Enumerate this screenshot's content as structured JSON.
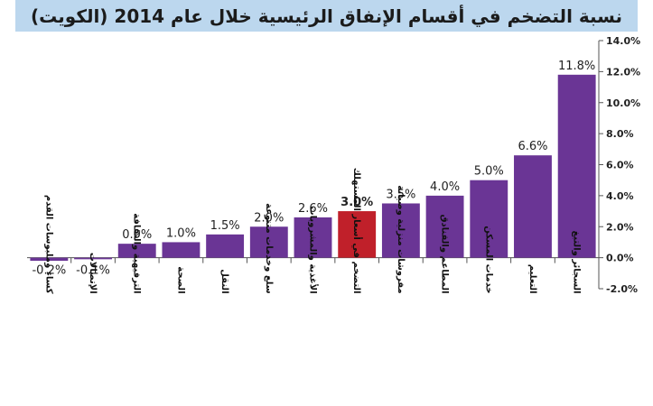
{
  "chart_data": {
    "type": "bar",
    "title": "نسبة التضخم في أقسام الإنفاق الرئيسية خلال عام 2014 (الكويت)",
    "categories": [
      "كساء وملبوسات القدم",
      "الإتصالات",
      "الترفيهية والثقافة",
      "الصحة",
      "النقل",
      "سلع وخدمات متنوعة",
      "الأغذية والمشروبات",
      "التضخم في أسعار المستهلك",
      "مفروشات منزلية وصيانة",
      "المطاعم والفنادق",
      "خدمات المسكن",
      "التعليم",
      "السجائر والتبغ"
    ],
    "values": [
      -0.2,
      -0.1,
      0.9,
      1.0,
      1.5,
      2.0,
      2.6,
      3.0,
      3.5,
      4.0,
      5.0,
      6.6,
      11.8
    ],
    "value_labels": [
      "-0.2%",
      "-0.1%",
      "0.9%",
      "1.0%",
      "1.5%",
      "2.0%",
      "2.6%",
      "3.0%",
      "3.5%",
      "4.0%",
      "5.0%",
      "6.6%",
      "11.8%"
    ],
    "highlight_index": 7,
    "ylim": [
      -2.0,
      14.0
    ],
    "yticks": [
      -2.0,
      0.0,
      2.0,
      4.0,
      6.0,
      8.0,
      10.0,
      12.0,
      14.0
    ],
    "ytick_labels": [
      "-2.0%",
      "0.0%",
      "2.0%",
      "4.0%",
      "6.0%",
      "8.0%",
      "10.0%",
      "12.0%",
      "14.0%"
    ],
    "xlabel": "",
    "ylabel": "",
    "axis_side": "right",
    "grid": false,
    "colors": {
      "bar": "#6a3595",
      "highlight": "#c0202a",
      "axis": "#555555",
      "text": "#222222",
      "title_band": "#bcd7ee"
    }
  }
}
